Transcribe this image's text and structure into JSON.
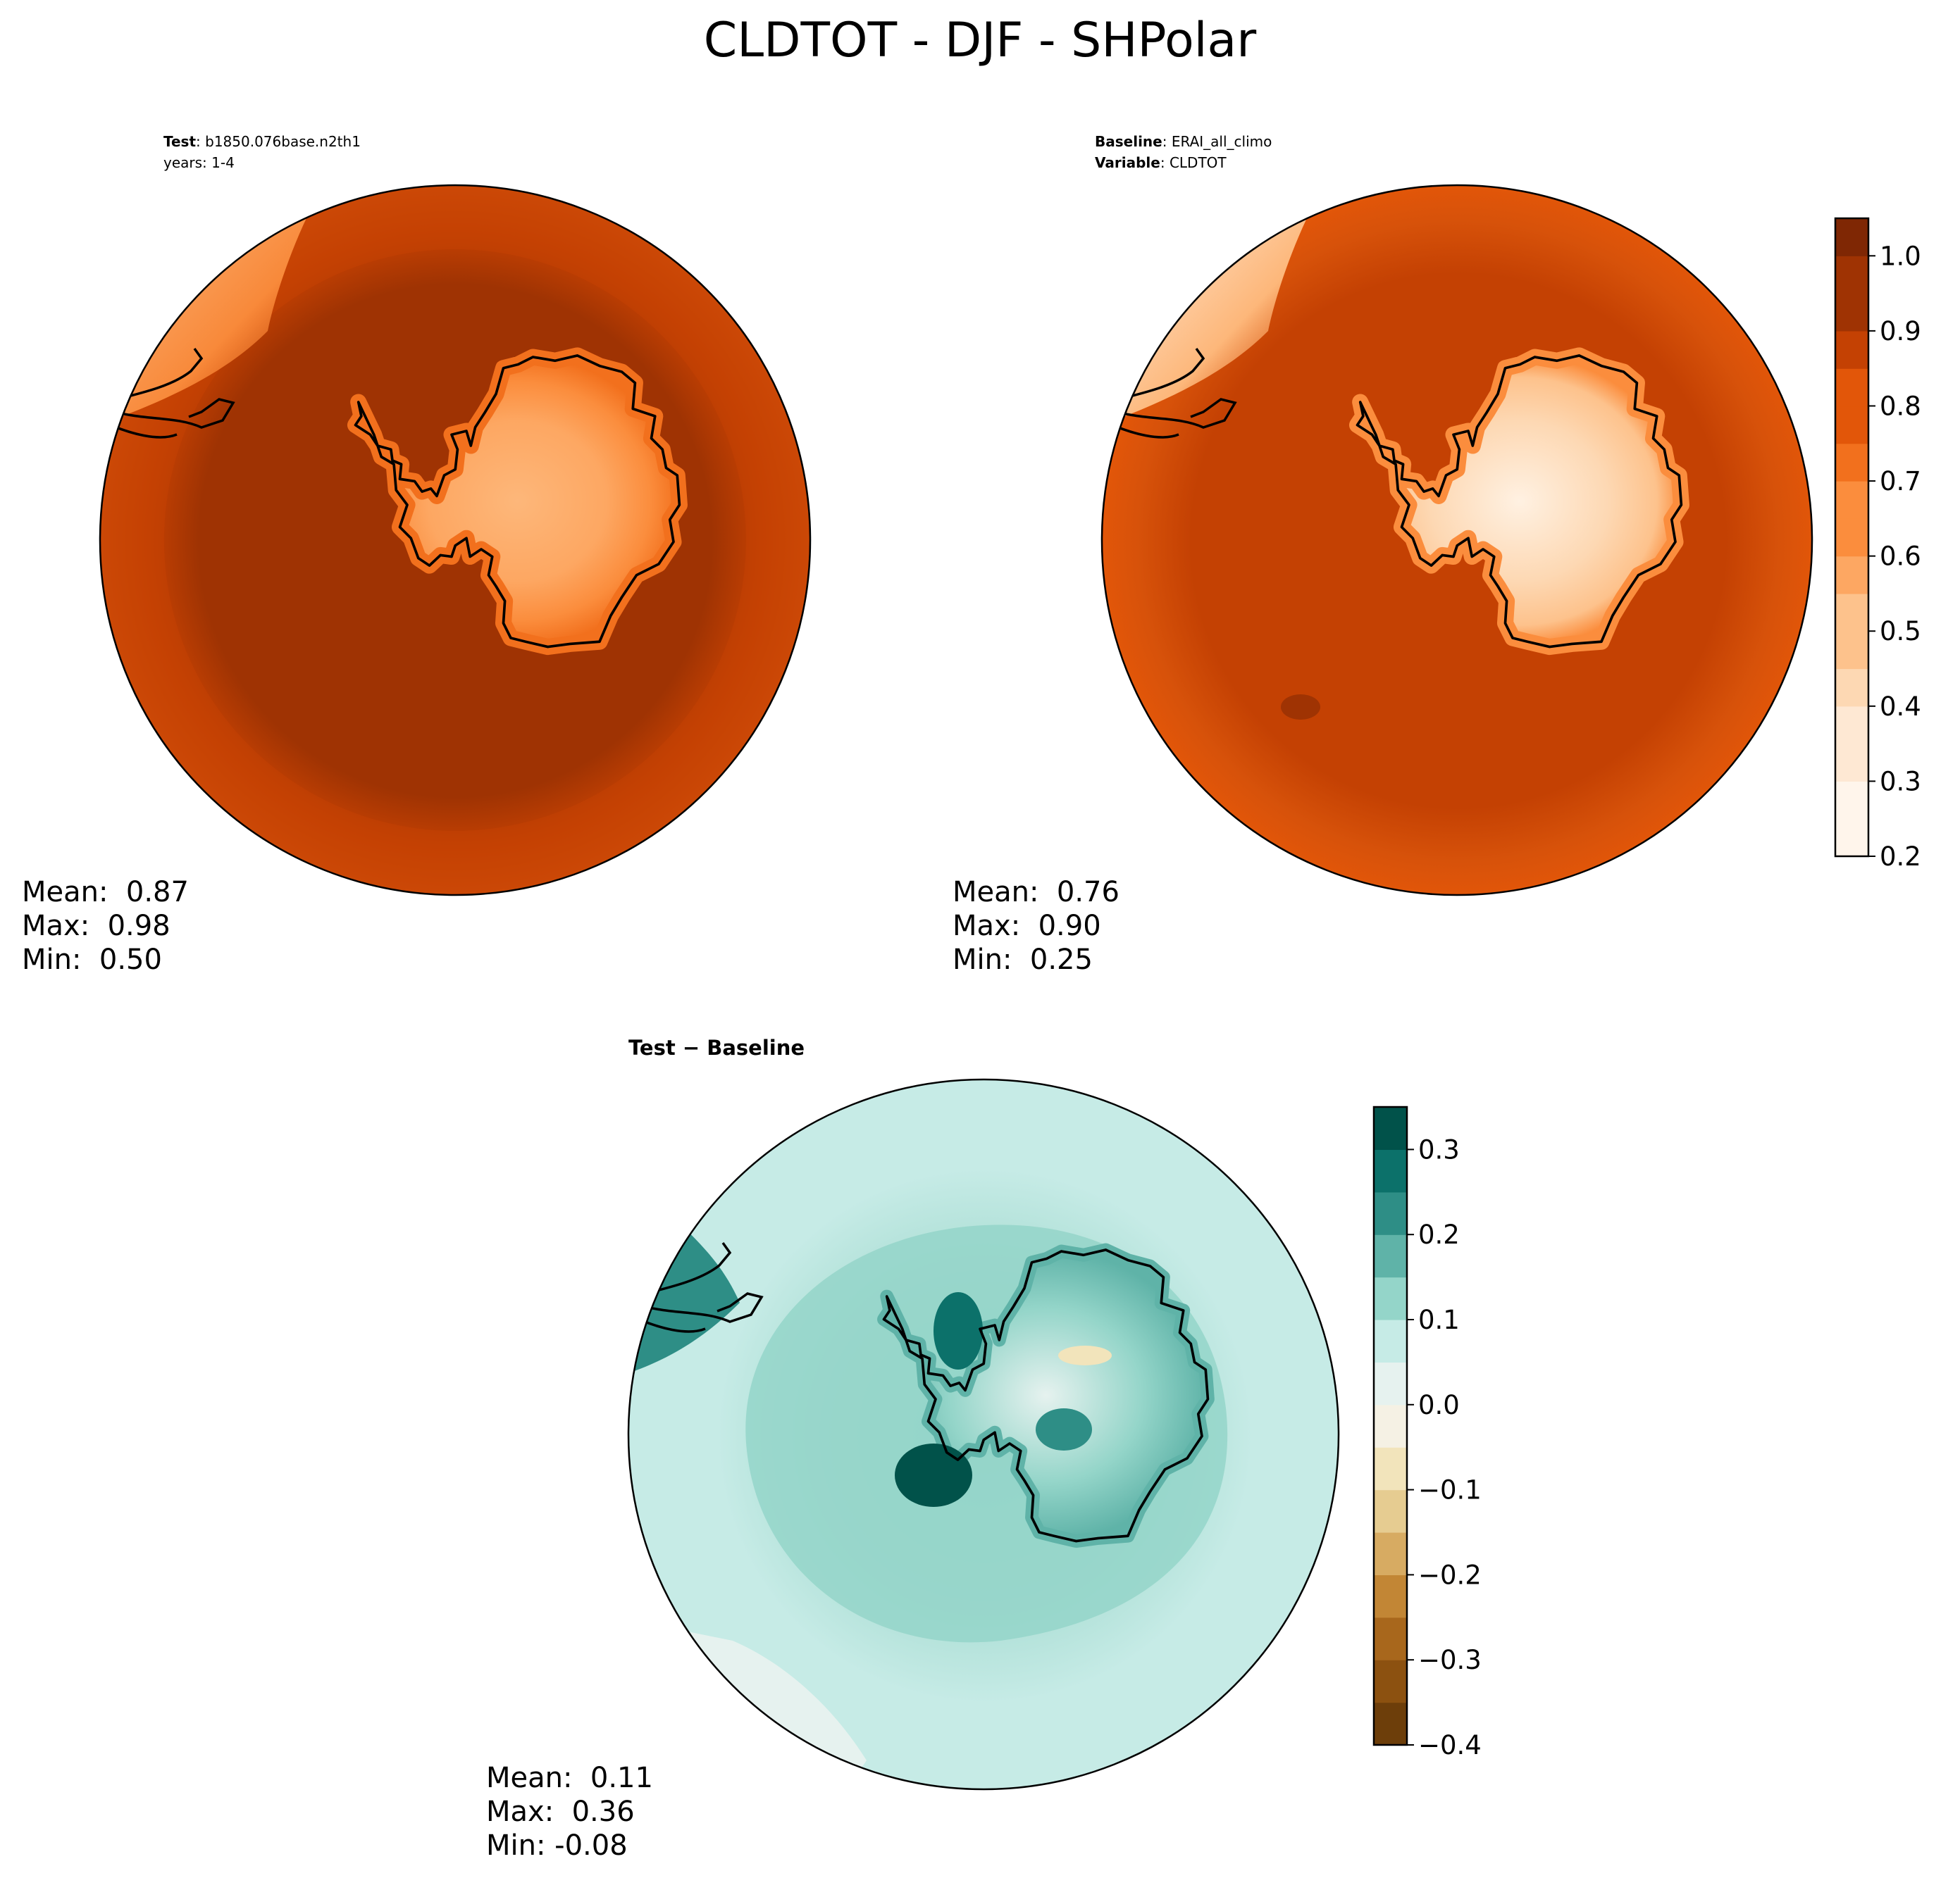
{
  "figure": {
    "title": "CLDTOT - DJF - SHPolar"
  },
  "panels": {
    "test": {
      "meta": [
        {
          "key": "Test",
          "sep": ": ",
          "value": "b1850.076base.n2th1"
        },
        {
          "key": "",
          "sep": "",
          "value": "years: 1-4"
        }
      ],
      "stats": {
        "mean": "Mean:  0.87",
        "max": "Max:  0.98",
        "min": "Min:  0.50"
      }
    },
    "baseline": {
      "meta": [
        {
          "key": "Baseline",
          "sep": ": ",
          "value": "ERAI_all_climo"
        },
        {
          "key": "Variable",
          "sep": ": ",
          "value": "CLDTOT"
        }
      ],
      "stats": {
        "mean": "Mean:  0.76",
        "max": "Max:  0.90",
        "min": "Min:  0.25"
      }
    },
    "diff": {
      "title": "Test − Baseline",
      "stats": {
        "mean": "Mean:  0.11",
        "max": "Max:  0.36",
        "min": "Min: -0.08"
      }
    }
  },
  "chart_data": [
    {
      "type": "heatmap",
      "projection": "south polar stereographic",
      "panel": "test",
      "variable": "CLDTOT",
      "mean": 0.87,
      "max": 0.98,
      "min": 0.5,
      "colorscale": "Oranges",
      "field_description": "ocean ~0.85-0.98, Antarctic interior ~0.50-0.65"
    },
    {
      "type": "heatmap",
      "projection": "south polar stereographic",
      "panel": "baseline",
      "variable": "CLDTOT",
      "mean": 0.76,
      "max": 0.9,
      "min": 0.25,
      "colorscale": "Oranges",
      "colorbar": {
        "range": [
          0.2,
          1.05
        ],
        "levels": [
          0.2,
          0.25,
          0.3,
          0.35,
          0.4,
          0.45,
          0.5,
          0.55,
          0.6,
          0.65,
          0.7,
          0.75,
          0.8,
          0.85,
          0.9,
          0.95,
          1.0,
          1.05
        ],
        "ticks": [
          "0.2",
          "0.3",
          "0.4",
          "0.5",
          "0.6",
          "0.7",
          "0.8",
          "0.9",
          "1.0"
        ],
        "colors": [
          "#fff5eb",
          "#fee8d3",
          "#fdd8b3",
          "#fdc28c",
          "#fda762",
          "#fb8d3d",
          "#f2701d",
          "#e25609",
          "#c44103",
          "#9f3303",
          "#7f2704"
        ]
      }
    },
    {
      "type": "heatmap",
      "projection": "south polar stereographic",
      "panel": "diff",
      "variable": "CLDTOT",
      "mean": 0.11,
      "max": 0.36,
      "min": -0.08,
      "colorscale": "BrBG",
      "colorbar": {
        "range": [
          -0.4,
          0.35
        ],
        "levels": [
          -0.4,
          -0.35,
          -0.3,
          -0.25,
          -0.2,
          -0.15,
          -0.1,
          -0.05,
          0.0,
          0.05,
          0.1,
          0.15,
          0.2,
          0.25,
          0.3,
          0.35
        ],
        "ticks": [
          "−0.4",
          "−0.3",
          "−0.2",
          "−0.1",
          "0.0",
          "0.1",
          "0.2",
          "0.3"
        ],
        "colors": [
          "#6d3e0a",
          "#8c5110",
          "#a8671c",
          "#c28635",
          "#d7ab62",
          "#e6cc91",
          "#f2e4bb",
          "#f5f1e4",
          "#e6f2ef",
          "#c6ebe6",
          "#94d5c9",
          "#5fb3a8",
          "#2e8e86",
          "#0c716a",
          "#01524a"
        ]
      }
    }
  ]
}
